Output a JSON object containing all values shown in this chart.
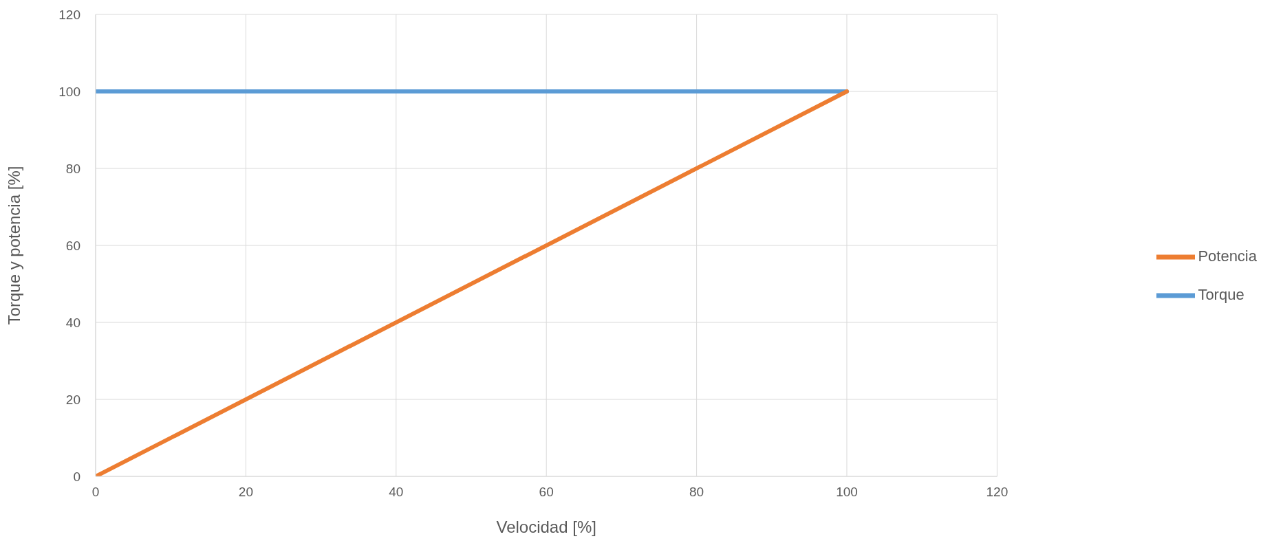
{
  "chart_data": {
    "type": "line",
    "xlabel": "Velocidad [%]",
    "ylabel": "Torque y potencia [%]",
    "x": [
      0,
      100
    ],
    "series": [
      {
        "name": "Torque",
        "color": "#5b9bd5",
        "values": [
          100,
          100
        ]
      },
      {
        "name": "Potencia",
        "color": "#ed7d31",
        "values": [
          0,
          100
        ]
      }
    ],
    "xlim": [
      0,
      120
    ],
    "xticks": [
      0,
      20,
      40,
      60,
      80,
      100,
      120
    ],
    "ylim": [
      0,
      120
    ],
    "yticks": [
      0,
      20,
      40,
      60,
      80,
      100,
      120
    ],
    "grid": true,
    "legend": "right",
    "marker": "none",
    "line_style": "solid"
  }
}
